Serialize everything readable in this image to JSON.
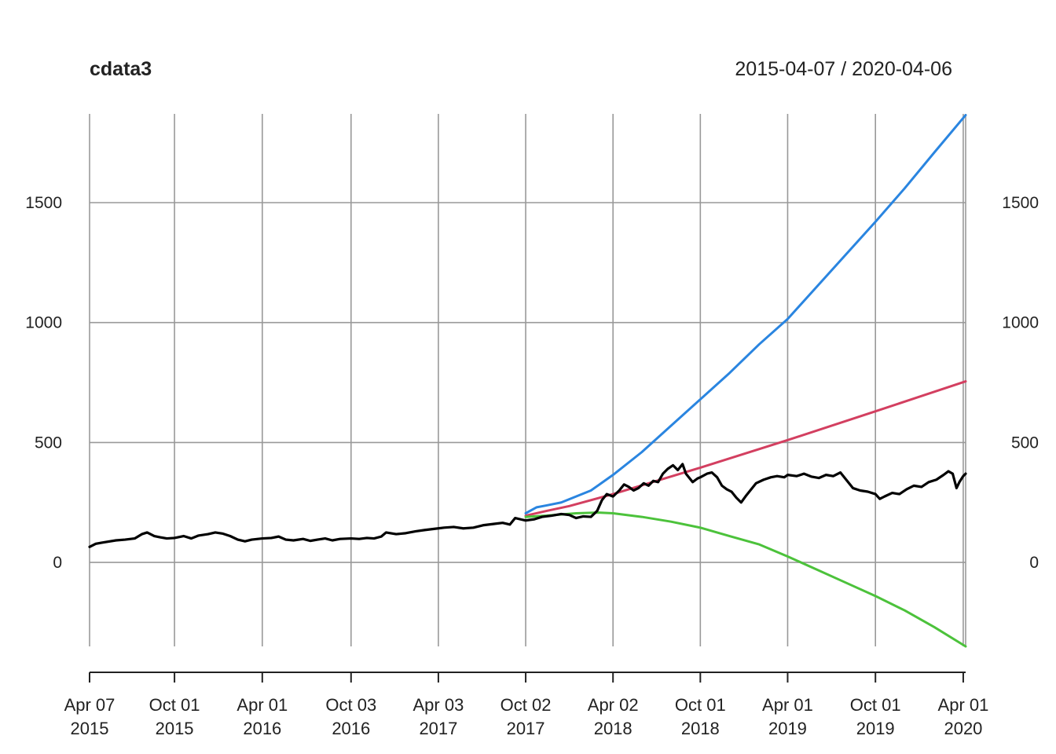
{
  "chart_data": {
    "type": "line",
    "title": "cdata3",
    "date_range": "2015-04-07 / 2020-04-06",
    "x_range": [
      "2015-04-07",
      "2020-04-06"
    ],
    "ylim": [
      -350,
      1870
    ],
    "grid": true,
    "y_ticks": [
      {
        "value": 0,
        "label": "0"
      },
      {
        "value": 500,
        "label": "500"
      },
      {
        "value": 1000,
        "label": "1000"
      },
      {
        "value": 1500,
        "label": "1500"
      }
    ],
    "x_ticks": [
      {
        "date": "2015-04-07",
        "line1": "Apr 07",
        "line2": "2015"
      },
      {
        "date": "2015-10-01",
        "line1": "Oct 01",
        "line2": "2015"
      },
      {
        "date": "2016-04-01",
        "line1": "Apr 01",
        "line2": "2016"
      },
      {
        "date": "2016-10-03",
        "line1": "Oct 03",
        "line2": "2016"
      },
      {
        "date": "2017-04-03",
        "line1": "Apr 03",
        "line2": "2017"
      },
      {
        "date": "2017-10-02",
        "line1": "Oct 02",
        "line2": "2017"
      },
      {
        "date": "2018-04-02",
        "line1": "Apr 02",
        "line2": "2018"
      },
      {
        "date": "2018-10-01",
        "line1": "Oct 01",
        "line2": "2018"
      },
      {
        "date": "2019-04-01",
        "line1": "Apr 01",
        "line2": "2019"
      },
      {
        "date": "2019-10-01",
        "line1": "Oct 01",
        "line2": "2019"
      },
      {
        "date": "2020-04-01",
        "line1": "Apr 01",
        "line2": "2020"
      }
    ],
    "series": [
      {
        "color": "#000000",
        "points": [
          [
            "2015-04-07",
            65
          ],
          [
            "2015-04-20",
            78
          ],
          [
            "2015-05-10",
            85
          ],
          [
            "2015-06-01",
            92
          ],
          [
            "2015-06-20",
            95
          ],
          [
            "2015-07-10",
            100
          ],
          [
            "2015-07-25",
            118
          ],
          [
            "2015-08-05",
            125
          ],
          [
            "2015-08-20",
            110
          ],
          [
            "2015-09-01",
            105
          ],
          [
            "2015-09-15",
            100
          ],
          [
            "2015-10-01",
            102
          ],
          [
            "2015-10-20",
            110
          ],
          [
            "2015-11-05",
            100
          ],
          [
            "2015-11-20",
            112
          ],
          [
            "2015-12-10",
            118
          ],
          [
            "2015-12-25",
            125
          ],
          [
            "2016-01-10",
            120
          ],
          [
            "2016-01-25",
            110
          ],
          [
            "2016-02-10",
            95
          ],
          [
            "2016-02-25",
            88
          ],
          [
            "2016-03-10",
            95
          ],
          [
            "2016-04-01",
            100
          ],
          [
            "2016-04-20",
            102
          ],
          [
            "2016-05-05",
            108
          ],
          [
            "2016-05-20",
            95
          ],
          [
            "2016-06-05",
            92
          ],
          [
            "2016-06-25",
            98
          ],
          [
            "2016-07-10",
            90
          ],
          [
            "2016-07-25",
            95
          ],
          [
            "2016-08-10",
            100
          ],
          [
            "2016-08-25",
            92
          ],
          [
            "2016-09-10",
            98
          ],
          [
            "2016-10-03",
            100
          ],
          [
            "2016-10-20",
            98
          ],
          [
            "2016-11-05",
            102
          ],
          [
            "2016-11-20",
            100
          ],
          [
            "2016-12-05",
            108
          ],
          [
            "2016-12-15",
            125
          ],
          [
            "2017-01-05",
            118
          ],
          [
            "2017-01-25",
            122
          ],
          [
            "2017-02-15",
            130
          ],
          [
            "2017-03-05",
            135
          ],
          [
            "2017-03-25",
            140
          ],
          [
            "2017-04-15",
            145
          ],
          [
            "2017-05-05",
            148
          ],
          [
            "2017-05-25",
            142
          ],
          [
            "2017-06-15",
            145
          ],
          [
            "2017-07-05",
            155
          ],
          [
            "2017-07-25",
            160
          ],
          [
            "2017-08-15",
            165
          ],
          [
            "2017-08-30",
            158
          ],
          [
            "2017-09-10",
            185
          ],
          [
            "2017-09-25",
            178
          ],
          [
            "2017-10-02",
            175
          ],
          [
            "2017-10-20",
            180
          ],
          [
            "2017-11-05",
            190
          ],
          [
            "2017-11-25",
            195
          ],
          [
            "2017-12-15",
            202
          ],
          [
            "2018-01-01",
            198
          ],
          [
            "2018-01-15",
            185
          ],
          [
            "2018-01-30",
            192
          ],
          [
            "2018-02-15",
            190
          ],
          [
            "2018-02-28",
            215
          ],
          [
            "2018-03-10",
            260
          ],
          [
            "2018-03-20",
            285
          ],
          [
            "2018-04-02",
            275
          ],
          [
            "2018-04-15",
            300
          ],
          [
            "2018-04-25",
            325
          ],
          [
            "2018-05-05",
            315
          ],
          [
            "2018-05-15",
            300
          ],
          [
            "2018-05-25",
            310
          ],
          [
            "2018-06-05",
            330
          ],
          [
            "2018-06-15",
            320
          ],
          [
            "2018-06-25",
            340
          ],
          [
            "2018-07-05",
            335
          ],
          [
            "2018-07-15",
            370
          ],
          [
            "2018-07-25",
            390
          ],
          [
            "2018-08-05",
            405
          ],
          [
            "2018-08-15",
            385
          ],
          [
            "2018-08-25",
            410
          ],
          [
            "2018-09-01",
            370
          ],
          [
            "2018-09-15",
            335
          ],
          [
            "2018-09-25",
            350
          ],
          [
            "2018-10-01",
            355
          ],
          [
            "2018-10-15",
            370
          ],
          [
            "2018-10-25",
            375
          ],
          [
            "2018-11-05",
            355
          ],
          [
            "2018-11-15",
            320
          ],
          [
            "2018-11-25",
            305
          ],
          [
            "2018-12-05",
            295
          ],
          [
            "2018-12-15",
            270
          ],
          [
            "2018-12-25",
            250
          ],
          [
            "2019-01-05",
            280
          ],
          [
            "2019-01-15",
            305
          ],
          [
            "2019-01-25",
            330
          ],
          [
            "2019-02-10",
            345
          ],
          [
            "2019-02-25",
            355
          ],
          [
            "2019-03-10",
            360
          ],
          [
            "2019-03-25",
            355
          ],
          [
            "2019-04-01",
            365
          ],
          [
            "2019-04-20",
            360
          ],
          [
            "2019-05-05",
            370
          ],
          [
            "2019-05-20",
            358
          ],
          [
            "2019-06-05",
            352
          ],
          [
            "2019-06-20",
            365
          ],
          [
            "2019-07-05",
            360
          ],
          [
            "2019-07-20",
            375
          ],
          [
            "2019-08-01",
            345
          ],
          [
            "2019-08-15",
            310
          ],
          [
            "2019-08-30",
            300
          ],
          [
            "2019-09-15",
            295
          ],
          [
            "2019-10-01",
            285
          ],
          [
            "2019-10-10",
            265
          ],
          [
            "2019-10-20",
            275
          ],
          [
            "2019-11-05",
            290
          ],
          [
            "2019-11-20",
            285
          ],
          [
            "2019-12-05",
            305
          ],
          [
            "2019-12-20",
            320
          ],
          [
            "2020-01-05",
            315
          ],
          [
            "2020-01-20",
            335
          ],
          [
            "2020-02-05",
            345
          ],
          [
            "2020-02-20",
            365
          ],
          [
            "2020-03-01",
            380
          ],
          [
            "2020-03-10",
            370
          ],
          [
            "2020-03-18",
            310
          ],
          [
            "2020-03-24",
            335
          ],
          [
            "2020-04-01",
            360
          ],
          [
            "2020-04-06",
            370
          ]
        ]
      },
      {
        "color": "#d33f60",
        "points": [
          [
            "2017-10-02",
            195
          ],
          [
            "2017-11-15",
            215
          ],
          [
            "2018-01-01",
            235
          ],
          [
            "2018-04-02",
            285
          ],
          [
            "2018-10-01",
            395
          ],
          [
            "2019-04-01",
            510
          ],
          [
            "2019-10-01",
            630
          ],
          [
            "2020-04-06",
            755
          ]
        ]
      },
      {
        "color": "#2a85e0",
        "points": [
          [
            "2017-10-02",
            205
          ],
          [
            "2017-10-25",
            230
          ],
          [
            "2017-11-15",
            238
          ],
          [
            "2017-12-15",
            250
          ],
          [
            "2018-01-15",
            275
          ],
          [
            "2018-02-15",
            300
          ],
          [
            "2018-04-02",
            365
          ],
          [
            "2018-06-01",
            460
          ],
          [
            "2018-08-01",
            570
          ],
          [
            "2018-10-01",
            680
          ],
          [
            "2018-12-01",
            790
          ],
          [
            "2019-02-01",
            910
          ],
          [
            "2019-04-01",
            1015
          ],
          [
            "2019-06-01",
            1150
          ],
          [
            "2019-08-01",
            1285
          ],
          [
            "2019-10-01",
            1420
          ],
          [
            "2019-12-01",
            1560
          ],
          [
            "2020-02-01",
            1710
          ],
          [
            "2020-04-06",
            1865
          ]
        ]
      },
      {
        "color": "#4cc23b",
        "points": [
          [
            "2017-10-02",
            190
          ],
          [
            "2017-11-15",
            195
          ],
          [
            "2018-01-15",
            205
          ],
          [
            "2018-03-01",
            208
          ],
          [
            "2018-04-02",
            205
          ],
          [
            "2018-06-01",
            190
          ],
          [
            "2018-08-01",
            170
          ],
          [
            "2018-10-01",
            145
          ],
          [
            "2018-12-01",
            110
          ],
          [
            "2019-02-01",
            75
          ],
          [
            "2019-04-01",
            25
          ],
          [
            "2019-06-01",
            -30
          ],
          [
            "2019-08-01",
            -85
          ],
          [
            "2019-10-01",
            -140
          ],
          [
            "2019-12-01",
            -200
          ],
          [
            "2020-02-01",
            -270
          ],
          [
            "2020-04-06",
            -350
          ]
        ]
      }
    ]
  }
}
